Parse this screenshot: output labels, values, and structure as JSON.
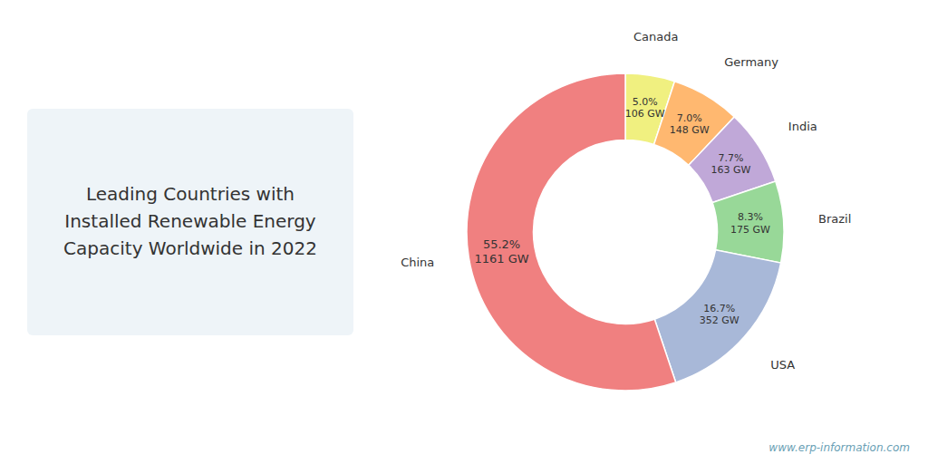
{
  "chart_data": {
    "type": "pie",
    "title": "Leading Countries with\nInstalled Renewable Energy\nCapacity Worldwide in 2022",
    "categories": [
      "Canada",
      "Germany",
      "India",
      "Brazil",
      "USA",
      "China"
    ],
    "values": [
      106,
      148,
      163,
      175,
      352,
      1161
    ],
    "value_labels": [
      "106 GW",
      "148 GW",
      "163 GW",
      "175 GW",
      "352 GW",
      "1161 GW"
    ],
    "percentages": [
      5.0,
      7.0,
      7.7,
      8.3,
      16.7,
      55.2
    ],
    "percentage_labels": [
      "5.0%",
      "7.0%",
      "7.7%",
      "8.3%",
      "16.7%",
      "55.2%"
    ],
    "colors": [
      "#F0F080",
      "#FFB870",
      "#C0A8D8",
      "#98D898",
      "#A8B8D8",
      "#F08080"
    ],
    "data_labels": true,
    "annotations": [
      "www.erp-information.com"
    ]
  }
}
